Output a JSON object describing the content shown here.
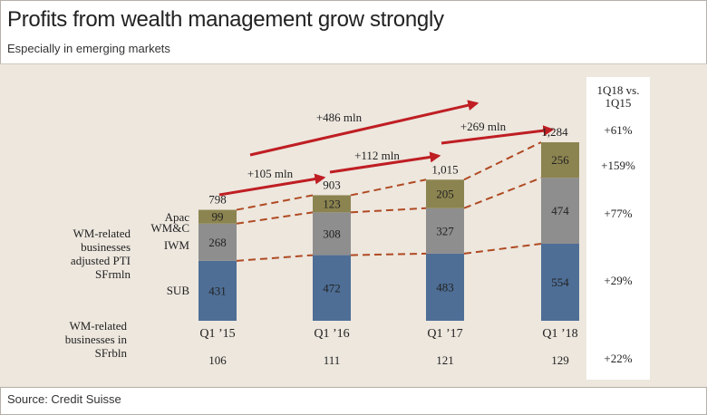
{
  "title": "Profits from wealth management grow strongly",
  "subtitle": "Especially in emerging markets",
  "source": "Source: Credit Suisse",
  "compare_header": "1Q18 vs. 1Q15",
  "row_label_pti": "WM-related businesses adjusted PTI SFrmln",
  "row_label_bln": "WM-related businesses in SFrbln",
  "colors": {
    "SUB": "#4e6e96",
    "IWM": "#8e8e8e",
    "Apac": "#8c8450",
    "arrow": "#bf1e23",
    "dash": "#b04a22",
    "panel": "#ede7de"
  },
  "chart_data": {
    "type": "bar",
    "stacked": true,
    "categories": [
      "Q1 '15",
      "Q1 '16",
      "Q1 '17",
      "Q1 '18"
    ],
    "series": [
      {
        "name": "SUB",
        "values": [
          431,
          472,
          483,
          554
        ],
        "change": "+29%"
      },
      {
        "name": "IWM",
        "values": [
          268,
          308,
          327,
          474
        ],
        "change": "+77%"
      },
      {
        "name": "Apac WM&C",
        "values": [
          99,
          123,
          205,
          256
        ],
        "change": "+159%"
      }
    ],
    "totals": [
      "798",
      "903",
      "1,015",
      "1,284"
    ],
    "total_change": "+61%",
    "total_values": [
      798,
      903,
      1015,
      1284
    ],
    "increments": [
      "+105 mln",
      "+112 mln",
      "+269 mln"
    ],
    "overall_increment": "+486 mln",
    "wm_bln": {
      "values": [
        "106",
        "111",
        "121",
        "129"
      ],
      "change": "+22%"
    },
    "ylim": [
      0,
      1284
    ]
  }
}
